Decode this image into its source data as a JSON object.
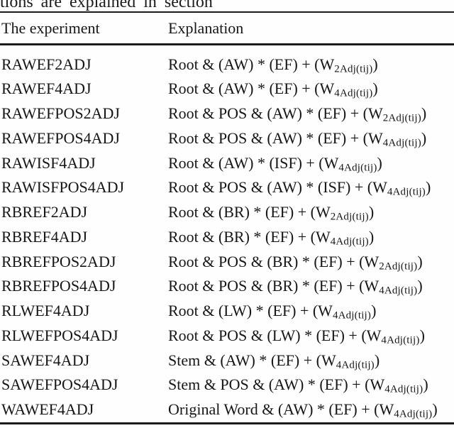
{
  "caption_fragment": "tions are explained in section",
  "colors": {
    "text": "#161616",
    "rule": "#1a1a1a",
    "background": "#fefefe"
  },
  "table": {
    "headers": [
      "The experiment",
      "Explanation"
    ],
    "rows": [
      {
        "experiment": "RAWEF2ADJ",
        "formula_main": "Root & (AW) * (EF) + (W",
        "formula_subscript": "2Adj(tij)",
        "formula_close": ")"
      },
      {
        "experiment": "RAWEF4ADJ",
        "formula_main": "Root & (AW) * (EF) + (W",
        "formula_subscript": "4Adj(tij)",
        "formula_close": ")"
      },
      {
        "experiment": "RAWEFPOS2ADJ",
        "formula_main": "Root & POS & (AW) * (EF) + (W",
        "formula_subscript": "2Adj(tij)",
        "formula_close": ")"
      },
      {
        "experiment": "RAWEFPOS4ADJ",
        "formula_main": "Root & POS & (AW) * (EF) + (W",
        "formula_subscript": "4Adj(tij)",
        "formula_close": ")"
      },
      {
        "experiment": "RAWISF4ADJ",
        "formula_main": "Root & (AW) * (ISF) + (W",
        "formula_subscript": "4Adj(tij)",
        "formula_close": ")"
      },
      {
        "experiment": "RAWISFPOS4ADJ",
        "formula_main": "Root & POS & (AW) * (ISF) + (W",
        "formula_subscript": "4Adj(tij)",
        "formula_close": ")"
      },
      {
        "experiment": "RBREF2ADJ",
        "formula_main": "Root & (BR) * (EF) + (W",
        "formula_subscript": "2Adj(tij)",
        "formula_close": ")"
      },
      {
        "experiment": "RBREF4ADJ",
        "formula_main": "Root & (BR) * (EF) + (W",
        "formula_subscript": "4Adj(tij)",
        "formula_close": ")"
      },
      {
        "experiment": "RBREFPOS2ADJ",
        "formula_main": "Root & POS & (BR) * (EF) + (W",
        "formula_subscript": "2Adj(tij)",
        "formula_close": ")"
      },
      {
        "experiment": "RBREFPOS4ADJ",
        "formula_main": "Root & POS & (BR) * (EF) + (W",
        "formula_subscript": "4Adj(tij)",
        "formula_close": ")"
      },
      {
        "experiment": "RLWEF4ADJ",
        "formula_main": "Root & (LW) * (EF) + (W",
        "formula_subscript": "4Adj(tij)",
        "formula_close": ")"
      },
      {
        "experiment": "RLWEFPOS4ADJ",
        "formula_main": "Root & POS & (LW) * (EF) + (W",
        "formula_subscript": "4Adj(tij)",
        "formula_close": ")"
      },
      {
        "experiment": "SAWEF4ADJ",
        "formula_main": "Stem & (AW) * (EF) + (W",
        "formula_subscript": "4Adj(tij)",
        "formula_close": ")"
      },
      {
        "experiment": "SAWEFPOS4ADJ",
        "formula_main": "Stem & POS & (AW) * (EF) + (W",
        "formula_subscript": "4Adj(tij)",
        "formula_close": ")"
      },
      {
        "experiment": "WAWEF4ADJ",
        "formula_main": "Original Word & (AW) * (EF) + (W",
        "formula_subscript": "4Adj(tij)",
        "formula_close": ")"
      }
    ]
  }
}
